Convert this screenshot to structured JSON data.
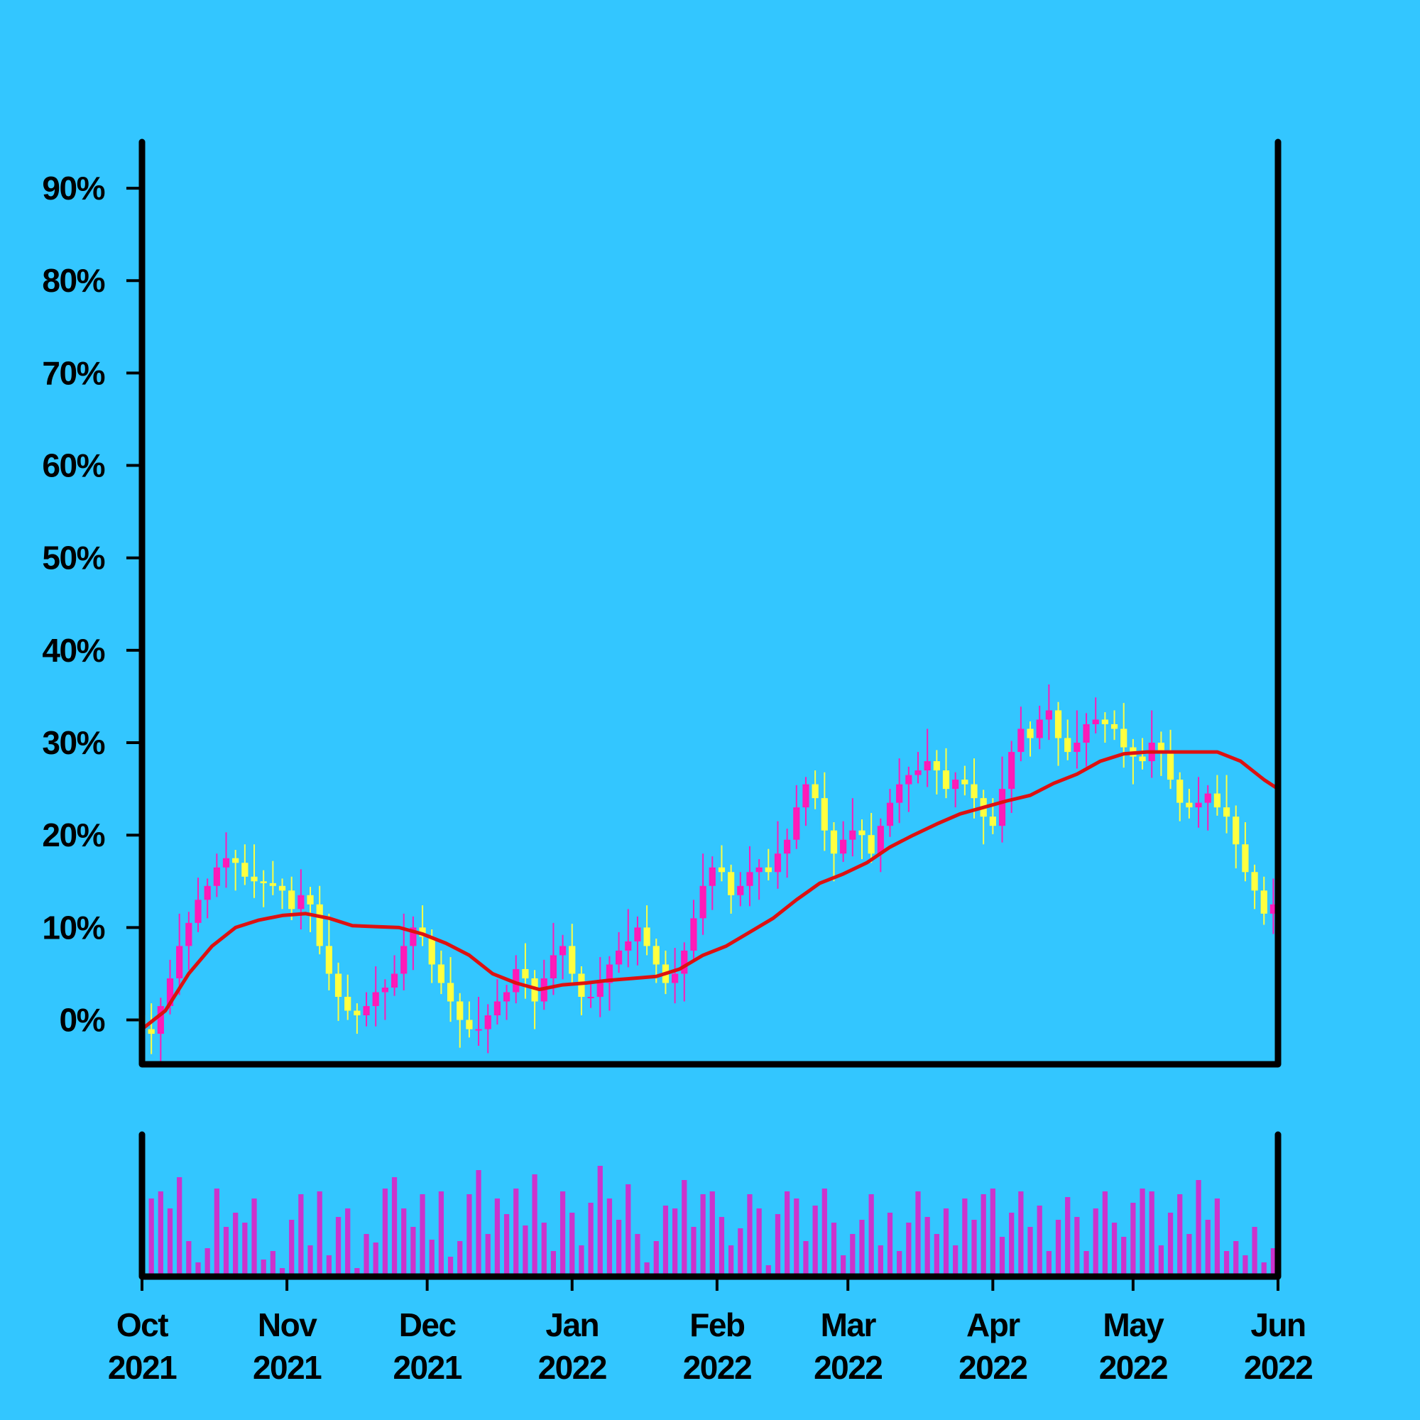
{
  "chart_data": [
    {
      "type": "candlestick",
      "up_color": "#ff1ab8",
      "down_color": "#ffff40",
      "xlim": [
        0,
        243
      ],
      "ylim": [
        -4.8,
        95
      ],
      "yticks": [
        {
          "value": 0,
          "label": "0%"
        },
        {
          "value": 10,
          "label": "10%"
        },
        {
          "value": 20,
          "label": "20%"
        },
        {
          "value": 30,
          "label": "30%"
        },
        {
          "value": 40,
          "label": "40%"
        },
        {
          "value": 50,
          "label": "50%"
        },
        {
          "value": 60,
          "label": "60%"
        },
        {
          "value": 70,
          "label": "70%"
        },
        {
          "value": 80,
          "label": "80%"
        },
        {
          "value": 90,
          "label": "90%"
        }
      ],
      "x": [
        0,
        2,
        4,
        6,
        8,
        10,
        12,
        14,
        16,
        18,
        20,
        22,
        24,
        26,
        28,
        30,
        32,
        34,
        36,
        38,
        40,
        42,
        44,
        46,
        48,
        50,
        52,
        54,
        56,
        58,
        60,
        62,
        64,
        66,
        68,
        70,
        72,
        74,
        76,
        78,
        80,
        82,
        84,
        86,
        88,
        90,
        92,
        94,
        96,
        98,
        100,
        102,
        104,
        106,
        108,
        110,
        112,
        114,
        116,
        118,
        120,
        122,
        124,
        126,
        128,
        130,
        132,
        134,
        136,
        138,
        140,
        142,
        144,
        146,
        148,
        150,
        152,
        154,
        156,
        158,
        160,
        162,
        164,
        166,
        168,
        170,
        172,
        174,
        176,
        178,
        180,
        182,
        184,
        186,
        188,
        190,
        192,
        194,
        196,
        198,
        200,
        202,
        204,
        206,
        208,
        210,
        212,
        214,
        216,
        218,
        220,
        222,
        224,
        226,
        228,
        230,
        232,
        234,
        236,
        238,
        240,
        242
      ],
      "open": [
        0.5,
        -1.0,
        -1.5,
        1.5,
        4.5,
        8.0,
        10.5,
        13.0,
        14.5,
        16.5,
        17.5,
        17.0,
        15.5,
        15.0,
        14.8,
        14.5,
        14.0,
        12.0,
        13.5,
        12.5,
        8.0,
        5.0,
        2.5,
        1.0,
        0.5,
        1.5,
        3.0,
        3.5,
        5.0,
        8.0,
        10.0,
        9.0,
        6.0,
        4.0,
        2.0,
        0.0,
        -1.0,
        -1.0,
        0.5,
        2.0,
        3.0,
        5.5,
        4.5,
        2.0,
        4.5,
        7.0,
        8.0,
        5.0,
        2.5,
        2.5,
        4.0,
        6.0,
        7.5,
        8.5,
        10.0,
        8.0,
        6.0,
        4.0,
        5.0,
        7.5,
        11.0,
        14.5,
        16.5,
        16.0,
        13.5,
        14.5,
        16.0,
        16.5,
        16.0,
        18.0,
        19.5,
        23.0,
        25.5,
        24.0,
        20.5,
        18.0,
        19.5,
        20.5,
        20.0,
        18.0,
        21.0,
        23.5,
        25.5,
        26.5,
        27.0,
        28.0,
        27.0,
        25.0,
        26.0,
        25.5,
        24.0,
        22.0,
        21.0,
        25.0,
        29.0,
        31.5,
        30.5,
        32.5,
        33.5,
        30.5,
        29.0,
        30.0,
        32.0,
        32.5,
        32.0,
        31.5,
        29.5,
        28.5,
        28.0,
        30.0,
        29.0,
        26.0,
        23.5,
        23.0,
        23.5,
        24.5,
        23.0,
        22.0,
        19.0,
        16.0,
        14.0,
        11.5
      ],
      "high": [
        2.0,
        1.8,
        2.4,
        6.5,
        11.5,
        11.7,
        15.4,
        15.3,
        18.0,
        20.3,
        18.4,
        19.0,
        19.0,
        16.2,
        17.2,
        15.3,
        15.5,
        16.3,
        14.4,
        14.5,
        11.5,
        6.2,
        4.9,
        1.8,
        3.0,
        5.8,
        4.4,
        7.0,
        11.5,
        11.2,
        12.4,
        9.8,
        7.5,
        6.8,
        2.9,
        2.0,
        2.5,
        1.7,
        4.4,
        3.8,
        7.0,
        8.3,
        5.4,
        6.5,
        10.5,
        9.2,
        10.4,
        5.8,
        4.0,
        6.8,
        6.9,
        9.5,
        12.0,
        11.2,
        12.4,
        8.8,
        7.5,
        7.8,
        8.4,
        13.0,
        18.0,
        17.7,
        18.9,
        16.8,
        16.0,
        18.8,
        17.4,
        18.5,
        21.5,
        20.7,
        25.4,
        26.3,
        27.0,
        26.8,
        21.4,
        21.5,
        24.0,
        21.7,
        22.4,
        21.8,
        25.0,
        28.3,
        27.4,
        29.0,
        31.5,
        29.2,
        29.4,
        26.8,
        27.5,
        28.3,
        24.9,
        24.0,
        28.5,
        30.2,
        33.9,
        32.3,
        34.0,
        36.3,
        34.4,
        32.5,
        33.5,
        33.2,
        34.9,
        33.3,
        33.5,
        34.3,
        30.4,
        30.5,
        33.5,
        31.2,
        31.4,
        26.8,
        25.0,
        26.3,
        25.4,
        26.5,
        26.5,
        23.2,
        21.4,
        16.8,
        15.5,
        15.3
      ],
      "low": [
        -2.2,
        -3.7,
        -4.5,
        0.6,
        2.7,
        5.4,
        9.5,
        11.0,
        13.3,
        14.3,
        14.0,
        14.6,
        13.2,
        12.2,
        13.5,
        12.0,
        10.8,
        9.8,
        9.5,
        7.1,
        3.2,
        -0.1,
        0.0,
        -1.5,
        -0.7,
        -0.7,
        0.0,
        2.6,
        3.2,
        5.4,
        8.0,
        4.0,
        2.8,
        -0.2,
        -3.0,
        -1.9,
        -2.8,
        -3.6,
        -0.5,
        0.0,
        1.8,
        2.3,
        -1.0,
        1.1,
        2.7,
        4.4,
        4.0,
        0.5,
        1.3,
        0.3,
        1.0,
        5.1,
        5.7,
        5.9,
        7.0,
        4.0,
        2.8,
        1.8,
        2.0,
        6.6,
        9.2,
        11.9,
        15.0,
        11.5,
        12.3,
        12.3,
        13.0,
        15.1,
        14.2,
        15.4,
        18.5,
        21.0,
        22.8,
        18.3,
        15.0,
        17.1,
        17.7,
        17.4,
        17.0,
        16.0,
        19.8,
        21.3,
        22.5,
        25.6,
        25.2,
        24.4,
        24.0,
        23.0,
        24.3,
        21.8,
        19.0,
        20.1,
        19.2,
        22.4,
        28.0,
        28.5,
        29.3,
        30.3,
        27.5,
        28.1,
        27.2,
        27.4,
        31.0,
        30.0,
        30.3,
        27.3,
        25.5,
        27.1,
        26.2,
        26.4,
        25.0,
        21.5,
        21.8,
        20.8,
        20.5,
        22.1,
        20.2,
        16.4,
        15.0,
        12.0,
        10.3,
        9.3
      ],
      "close": [
        -1.0,
        -1.5,
        1.5,
        4.5,
        8.0,
        10.5,
        13.0,
        14.5,
        16.5,
        17.5,
        17.0,
        15.5,
        15.0,
        14.8,
        14.5,
        14.0,
        12.0,
        13.5,
        12.5,
        8.0,
        5.0,
        2.5,
        1.0,
        0.5,
        1.5,
        3.0,
        3.5,
        5.0,
        8.0,
        10.0,
        9.0,
        6.0,
        4.0,
        2.0,
        0.0,
        -1.0,
        -1.0,
        0.5,
        2.0,
        3.0,
        5.5,
        4.5,
        2.0,
        4.5,
        7.0,
        8.0,
        5.0,
        2.5,
        2.5,
        4.0,
        6.0,
        7.5,
        8.5,
        10.0,
        8.0,
        6.0,
        4.0,
        5.0,
        7.5,
        11.0,
        14.5,
        16.5,
        16.0,
        13.5,
        14.5,
        16.0,
        16.5,
        16.0,
        18.0,
        19.5,
        23.0,
        25.5,
        24.0,
        20.5,
        18.0,
        19.5,
        20.5,
        20.0,
        18.0,
        21.0,
        23.5,
        25.5,
        26.5,
        27.0,
        28.0,
        27.0,
        25.0,
        26.0,
        25.5,
        24.0,
        22.0,
        21.0,
        25.0,
        29.0,
        31.5,
        30.5,
        32.5,
        33.5,
        30.5,
        29.0,
        30.0,
        32.0,
        32.5,
        32.0,
        31.5,
        29.5,
        28.5,
        28.0,
        30.0,
        29.0,
        26.0,
        23.5,
        23.0,
        23.5,
        24.5,
        23.0,
        22.0,
        19.0,
        16.0,
        14.0,
        11.5,
        12.5
      ],
      "series": [
        {
          "color": "#dd1111",
          "x": [
            0,
            5,
            10,
            15,
            20,
            25,
            30,
            35,
            40,
            45,
            50,
            55,
            60,
            65,
            70,
            75,
            80,
            85,
            90,
            95,
            100,
            105,
            110,
            115,
            120,
            125,
            130,
            135,
            140,
            145,
            150,
            155,
            160,
            165,
            170,
            175,
            180,
            185,
            190,
            195,
            200,
            205,
            210,
            215,
            220,
            225,
            230,
            235,
            240,
            243
          ],
          "values": [
            -1,
            1,
            5,
            8,
            10,
            10.8,
            11.3,
            11.5,
            11,
            10.2,
            10.1,
            10,
            9.3,
            8.3,
            7,
            5,
            4,
            3.3,
            3.8,
            4,
            4.3,
            4.5,
            4.7,
            5.5,
            7,
            8,
            9.5,
            11,
            13,
            14.8,
            15.8,
            17,
            18.7,
            20,
            21.2,
            22.3,
            23,
            23.7,
            24.3,
            25.6,
            26.6,
            28,
            28.8,
            29,
            29,
            29,
            29,
            28,
            26,
            25
          ]
        }
      ]
    },
    {
      "type": "bar",
      "color": "#cc33cc",
      "xlim": [
        0,
        243
      ],
      "ylim": [
        0,
        100
      ],
      "xticks": [
        {
          "value": 0,
          "label": "Oct 2021"
        },
        {
          "value": 31,
          "label": "Nov 2021"
        },
        {
          "value": 61,
          "label": "Dec 2021"
        },
        {
          "value": 92,
          "label": "Jan 2022"
        },
        {
          "value": 123,
          "label": "Feb 2022"
        },
        {
          "value": 151,
          "label": "Mar 2022"
        },
        {
          "value": 182,
          "label": "Apr 2022"
        },
        {
          "value": 212,
          "label": "May 2022"
        },
        {
          "value": 243,
          "label": "Jun 2022"
        }
      ],
      "x": [
        0,
        2,
        4,
        6,
        8,
        10,
        12,
        14,
        16,
        18,
        20,
        22,
        24,
        26,
        28,
        30,
        32,
        34,
        36,
        38,
        40,
        42,
        44,
        46,
        48,
        50,
        52,
        54,
        56,
        58,
        60,
        62,
        64,
        66,
        68,
        70,
        72,
        74,
        76,
        78,
        80,
        82,
        84,
        86,
        88,
        90,
        92,
        94,
        96,
        98,
        100,
        102,
        104,
        106,
        108,
        110,
        112,
        114,
        116,
        118,
        120,
        122,
        124,
        126,
        128,
        130,
        132,
        134,
        136,
        138,
        140,
        142,
        144,
        146,
        148,
        150,
        152,
        154,
        156,
        158,
        160,
        162,
        164,
        166,
        168,
        170,
        172,
        174,
        176,
        178,
        180,
        182,
        184,
        186,
        188,
        190,
        192,
        194,
        196,
        198,
        200,
        202,
        204,
        206,
        208,
        210,
        212,
        214,
        216,
        218,
        220,
        222,
        224,
        226,
        228,
        230,
        232,
        234,
        236,
        238,
        240,
        242
      ],
      "values": [
        52,
        55,
        60,
        48,
        70,
        25,
        10,
        20,
        62,
        35,
        45,
        38,
        55,
        12,
        18,
        6,
        40,
        58,
        22,
        60,
        15,
        42,
        48,
        6,
        30,
        24,
        62,
        70,
        48,
        35,
        58,
        26,
        60,
        14,
        25,
        58,
        75,
        30,
        55,
        44,
        62,
        36,
        72,
        38,
        18,
        60,
        45,
        22,
        52,
        78,
        55,
        40,
        65,
        30,
        10,
        25,
        50,
        48,
        68,
        35,
        58,
        60,
        42,
        22,
        34,
        58,
        48,
        8,
        44,
        60,
        55,
        25,
        50,
        62,
        38,
        15,
        30,
        40,
        58,
        22,
        45,
        18,
        38,
        60,
        42,
        30,
        48,
        22,
        55,
        40,
        58,
        62,
        28,
        45,
        60,
        35,
        50,
        18,
        40,
        56,
        42,
        18,
        48,
        60,
        38,
        28,
        52,
        62,
        60,
        22,
        45,
        58,
        30,
        68,
        40,
        55,
        18,
        25,
        15,
        35,
        10,
        20
      ]
    }
  ]
}
